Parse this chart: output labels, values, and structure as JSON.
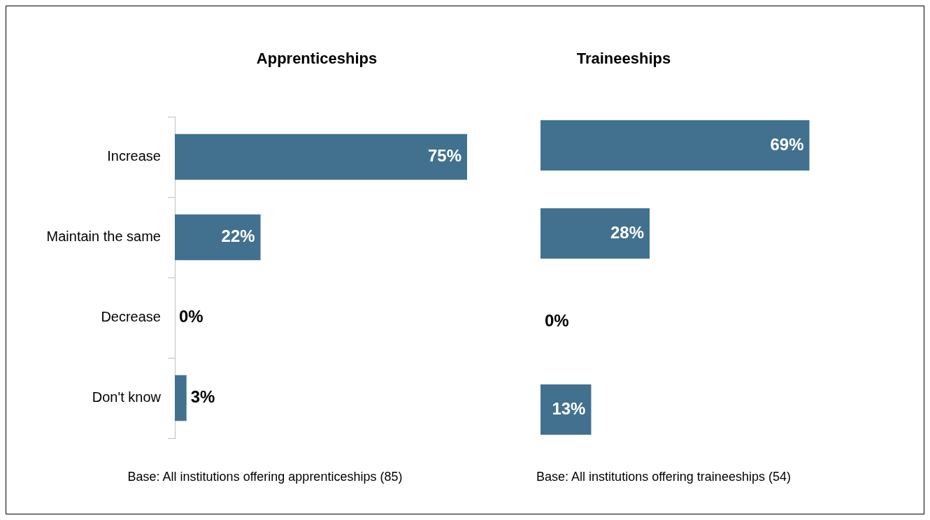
{
  "chart_data": [
    {
      "type": "bar",
      "orientation": "horizontal",
      "title": "Apprenticeships",
      "categories": [
        "Increase",
        "Maintain the same",
        "Decrease",
        "Don't know"
      ],
      "values": [
        75,
        22,
        0,
        3
      ],
      "value_labels": [
        "75%",
        "22%",
        "0%",
        "3%"
      ],
      "color": "#41718f",
      "tick_labels": "y",
      "legend": false,
      "annotations": [
        "Base: All institutions offering apprenticeships (85)"
      ]
    },
    {
      "type": "bar",
      "orientation": "horizontal",
      "title": "Traineeships",
      "categories": [
        null,
        null,
        null,
        null
      ],
      "values": [
        69,
        28,
        0,
        13
      ],
      "value_labels": [
        "69%",
        "28%",
        "0%",
        "13%"
      ],
      "color": "#41718f",
      "tick_labels": false,
      "legend": false,
      "annotations": [
        "Base: All institutions offering traineeships (54)"
      ]
    }
  ]
}
